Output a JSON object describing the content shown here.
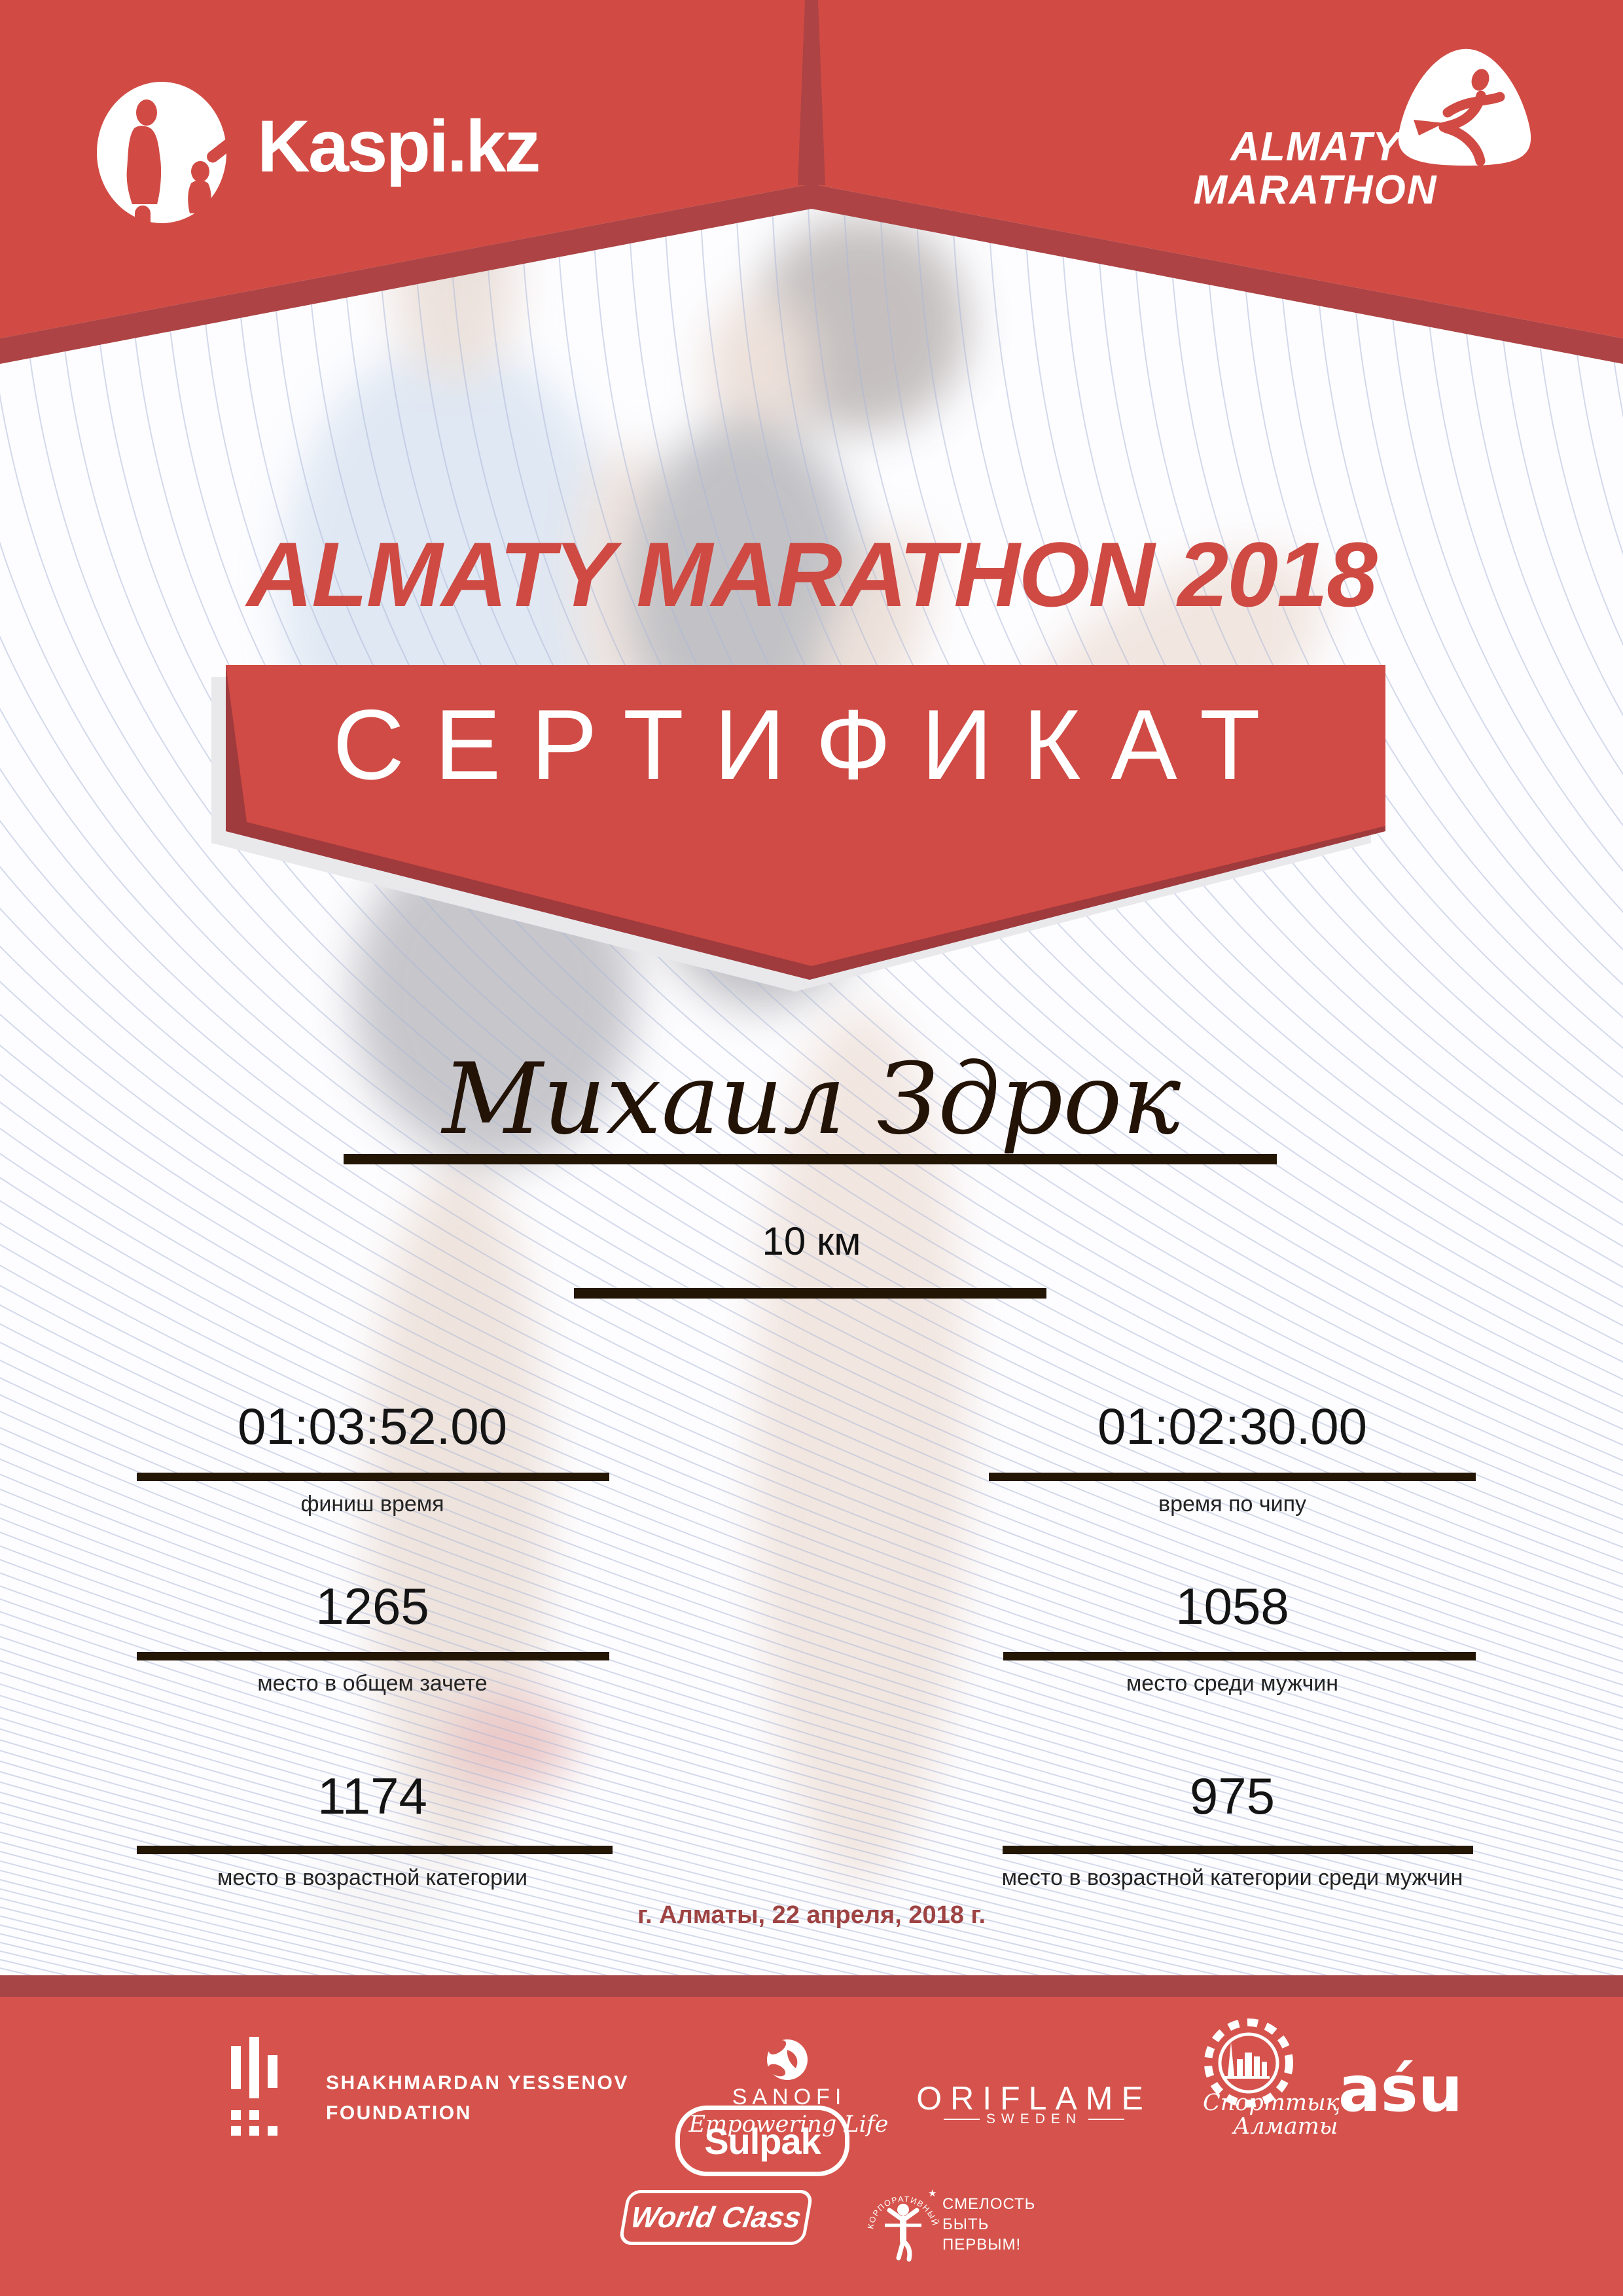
{
  "header": {
    "kaspi_logo_text": "Kaspi.kz",
    "marathon_logo": {
      "line1": "ALMATY",
      "line2": "MARATHON"
    }
  },
  "title": "ALMATY MARATHON 2018",
  "certificate_label": "СЕРТИФИКАТ",
  "participant": {
    "name": "Михаил Здрок",
    "distance": "10 км"
  },
  "results": [
    {
      "value": "01:03:52.00",
      "label": "финиш время"
    },
    {
      "value": "01:02:30.00",
      "label": "время по чипу"
    },
    {
      "value": "1265",
      "label": "место в общем зачете"
    },
    {
      "value": "1058",
      "label": "место среди мужчин"
    },
    {
      "value": "1174",
      "label": "место в возрастной категории"
    },
    {
      "value": "975",
      "label": "место в возрастной категории среди мужчин"
    }
  ],
  "date_line": "г. Алматы, 22 апреля, 2018 г.",
  "sponsors": {
    "yessenov": {
      "line1": "SHAKHMARDAN YESSENOV",
      "line2": "FOUNDATION"
    },
    "sulpak": "Sulpak",
    "sanofi": {
      "name": "SANOFI",
      "tagline": "Empowering Life"
    },
    "oriflame": {
      "name": "ORIFLAME",
      "sub": "SWEDEN"
    },
    "sport_almaty": {
      "line1": "Спорттық",
      "line2": "Алматы"
    },
    "asu": "aśu",
    "world_class": "World Class",
    "fond": {
      "circle_text": "КОРПОРАТИВНЫЙ ФОНД",
      "star": "★",
      "line1": "СМЕЛОСТЬ",
      "line2": "БЫТЬ",
      "line3": "ПЕРВЫМ!"
    }
  },
  "colors": {
    "red": "#d14b44",
    "red_dark": "#ad4344",
    "footer_red": "#d5534c",
    "footer_strip": "#a74446",
    "ribbon_red": "#d04b45",
    "ribbon_dark": "#9f3a3d",
    "ribbon_backing": "#e9e9ec",
    "bar_dark": "#241605",
    "date_red": "#9e4343",
    "guilloche_line": "#a9b5d8"
  }
}
